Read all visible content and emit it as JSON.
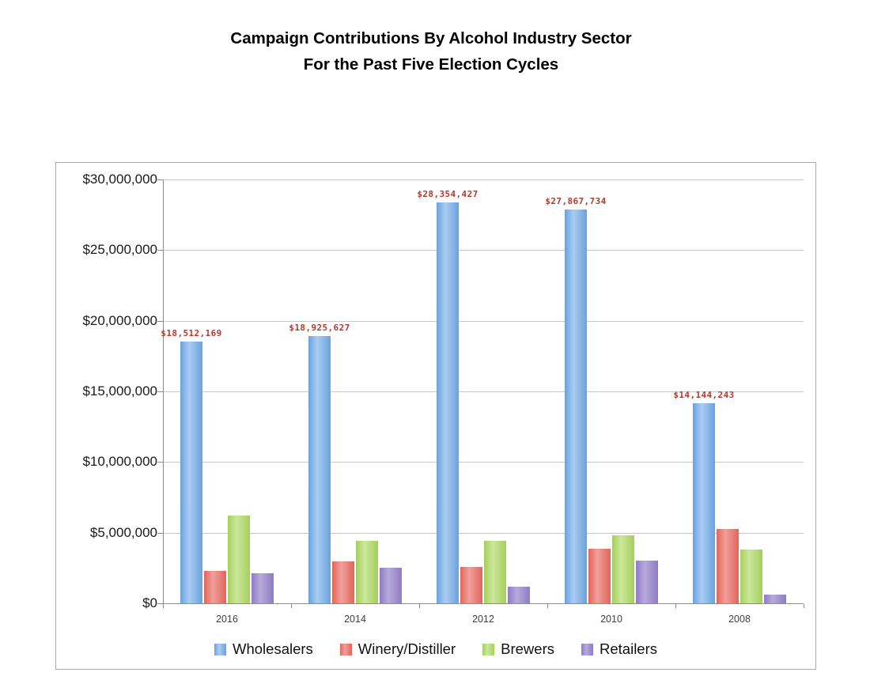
{
  "chart": {
    "title_line1": "Campaign Contributions By Alcohol Industry Sector",
    "title_line2": "For the Past Five Election Cycles"
  },
  "chart_data": {
    "type": "bar",
    "title": "Campaign Contributions By Alcohol Industry Sector For the Past Five Election Cycles",
    "categories": [
      "2016",
      "2014",
      "2012",
      "2010",
      "2008"
    ],
    "series": [
      {
        "name": "Wholesalers",
        "color": "#6aa1de",
        "color_light": "#aacdf1",
        "values": [
          18512169,
          18925627,
          28354427,
          27867734,
          14144243
        ],
        "labels": [
          "$18,512,169",
          "$18,925,627",
          "$28,354,427",
          "$27,867,734",
          "$14,144,243"
        ]
      },
      {
        "name": "Winery/Distiller",
        "color": "#e0655b",
        "color_light": "#f2a09a",
        "values": [
          2300000,
          2950000,
          2600000,
          3850000,
          5250000
        ]
      },
      {
        "name": "Brewers",
        "color": "#a5cf5c",
        "color_light": "#cce79b",
        "values": [
          6200000,
          4400000,
          4450000,
          4800000,
          3800000
        ]
      },
      {
        "name": "Retailers",
        "color": "#8e7cc3",
        "color_light": "#b7aadb",
        "values": [
          2100000,
          2500000,
          1200000,
          3000000,
          600000
        ]
      }
    ],
    "ylabel_ticks": [
      "$0",
      "$5,000,000",
      "$10,000,000",
      "$15,000,000",
      "$20,000,000",
      "$25,000,000",
      "$30,000,000"
    ],
    "ylim": [
      0,
      30000000
    ],
    "ytick_step": 5000000,
    "grid": true,
    "legend_position": "bottom",
    "value_label_color": "#b03a2e",
    "xlabel": "",
    "ylabel": ""
  }
}
